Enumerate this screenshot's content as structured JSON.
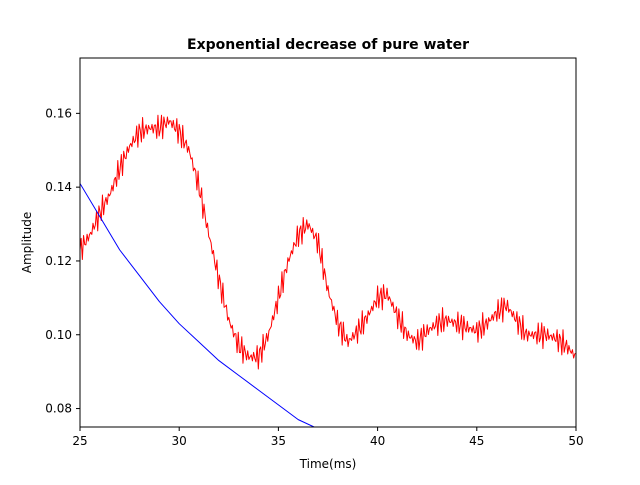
{
  "chart_data": {
    "type": "line",
    "title": "Exponential decrease of pure water",
    "xlabel": "Time(ms)",
    "ylabel": "Amplitude",
    "xlim": [
      25,
      50
    ],
    "ylim": [
      0.075,
      0.175
    ],
    "grid": false,
    "x_ticks": [
      "25",
      "30",
      "35",
      "40",
      "45",
      "50"
    ],
    "y_ticks": [
      "0.08",
      "0.10",
      "0.12",
      "0.14",
      "0.16"
    ],
    "series": [
      {
        "color": "#ff0000",
        "style": "noisy",
        "x": [
          25.0,
          25.5,
          26.0,
          26.5,
          27.0,
          27.5,
          28.0,
          28.5,
          29.0,
          29.5,
          30.0,
          30.5,
          31.0,
          31.5,
          32.0,
          32.5,
          33.0,
          33.5,
          34.0,
          34.5,
          35.0,
          35.5,
          36.0,
          36.5,
          37.0,
          37.5,
          38.0,
          38.5,
          39.0,
          39.5,
          40.0,
          40.5,
          41.0,
          41.5,
          42.0,
          42.5,
          43.0,
          43.5,
          44.0,
          44.5,
          45.0,
          45.5,
          46.0,
          46.5,
          47.0,
          47.5,
          48.0,
          48.5,
          49.0,
          49.5,
          50.0
        ],
        "y": [
          0.123,
          0.127,
          0.133,
          0.138,
          0.145,
          0.151,
          0.155,
          0.156,
          0.156,
          0.158,
          0.155,
          0.15,
          0.14,
          0.127,
          0.115,
          0.104,
          0.097,
          0.094,
          0.094,
          0.1,
          0.11,
          0.12,
          0.127,
          0.13,
          0.125,
          0.112,
          0.103,
          0.098,
          0.101,
          0.105,
          0.11,
          0.111,
          0.105,
          0.1,
          0.098,
          0.101,
          0.103,
          0.104,
          0.103,
          0.102,
          0.101,
          0.103,
          0.106,
          0.108,
          0.104,
          0.1,
          0.1,
          0.1,
          0.099,
          0.097,
          0.094
        ],
        "jitter": 0.004
      },
      {
        "color": "#0000ff",
        "style": "smooth",
        "x": [
          25.0,
          26.0,
          27.0,
          28.0,
          29.0,
          30.0,
          31.0,
          32.0,
          33.0,
          34.0,
          35.0,
          36.0,
          36.8
        ],
        "y": [
          0.141,
          0.132,
          0.123,
          0.116,
          0.109,
          0.103,
          0.098,
          0.093,
          0.089,
          0.085,
          0.081,
          0.077,
          0.075
        ]
      }
    ]
  }
}
